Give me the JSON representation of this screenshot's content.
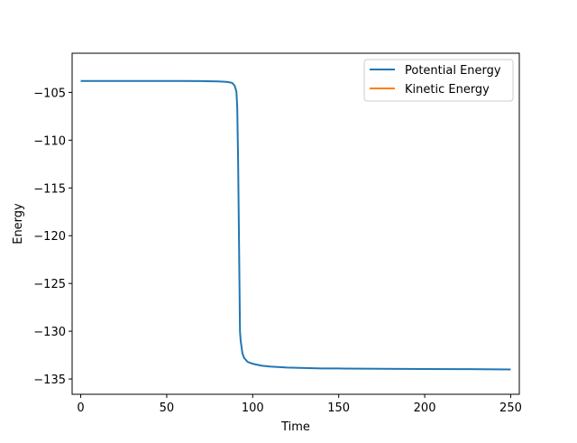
{
  "chart_data": {
    "type": "line",
    "title": "",
    "xlabel": "Time",
    "ylabel": "Energy",
    "xlim": [
      -5,
      255
    ],
    "ylim": [
      -136.6,
      -100.9
    ],
    "xticks": [
      0,
      50,
      100,
      150,
      200,
      250
    ],
    "xtick_labels": [
      "0",
      "50",
      "100",
      "150",
      "200",
      "250"
    ],
    "yticks": [
      -105,
      -110,
      -115,
      -120,
      -125,
      -130,
      -135
    ],
    "ytick_labels": [
      "−105",
      "−110",
      "−115",
      "−120",
      "−125",
      "−130",
      "−135"
    ],
    "grid": false,
    "legend_position": "top-right",
    "series": [
      {
        "name": "Potential Energy",
        "color": "#1f77b4",
        "x": [
          0,
          20,
          40,
          60,
          70,
          80,
          85,
          88,
          89.5,
          90.5,
          91,
          91.5,
          92,
          92.3,
          92.6,
          93,
          94,
          95,
          96,
          97,
          99,
          101,
          105,
          110,
          120,
          130,
          140,
          150,
          175,
          200,
          225,
          250
        ],
        "y": [
          -103.8,
          -103.8,
          -103.8,
          -103.8,
          -103.82,
          -103.85,
          -103.9,
          -104.0,
          -104.3,
          -104.9,
          -106.5,
          -112.0,
          -120.0,
          -125.0,
          -130.0,
          -131.0,
          -132.3,
          -132.8,
          -133.0,
          -133.2,
          -133.35,
          -133.45,
          -133.6,
          -133.7,
          -133.8,
          -133.85,
          -133.9,
          -133.9,
          -133.93,
          -133.95,
          -133.97,
          -134.0
        ]
      },
      {
        "name": "Kinetic Energy",
        "color": "#ff7f0e",
        "x": [],
        "y": []
      }
    ]
  }
}
